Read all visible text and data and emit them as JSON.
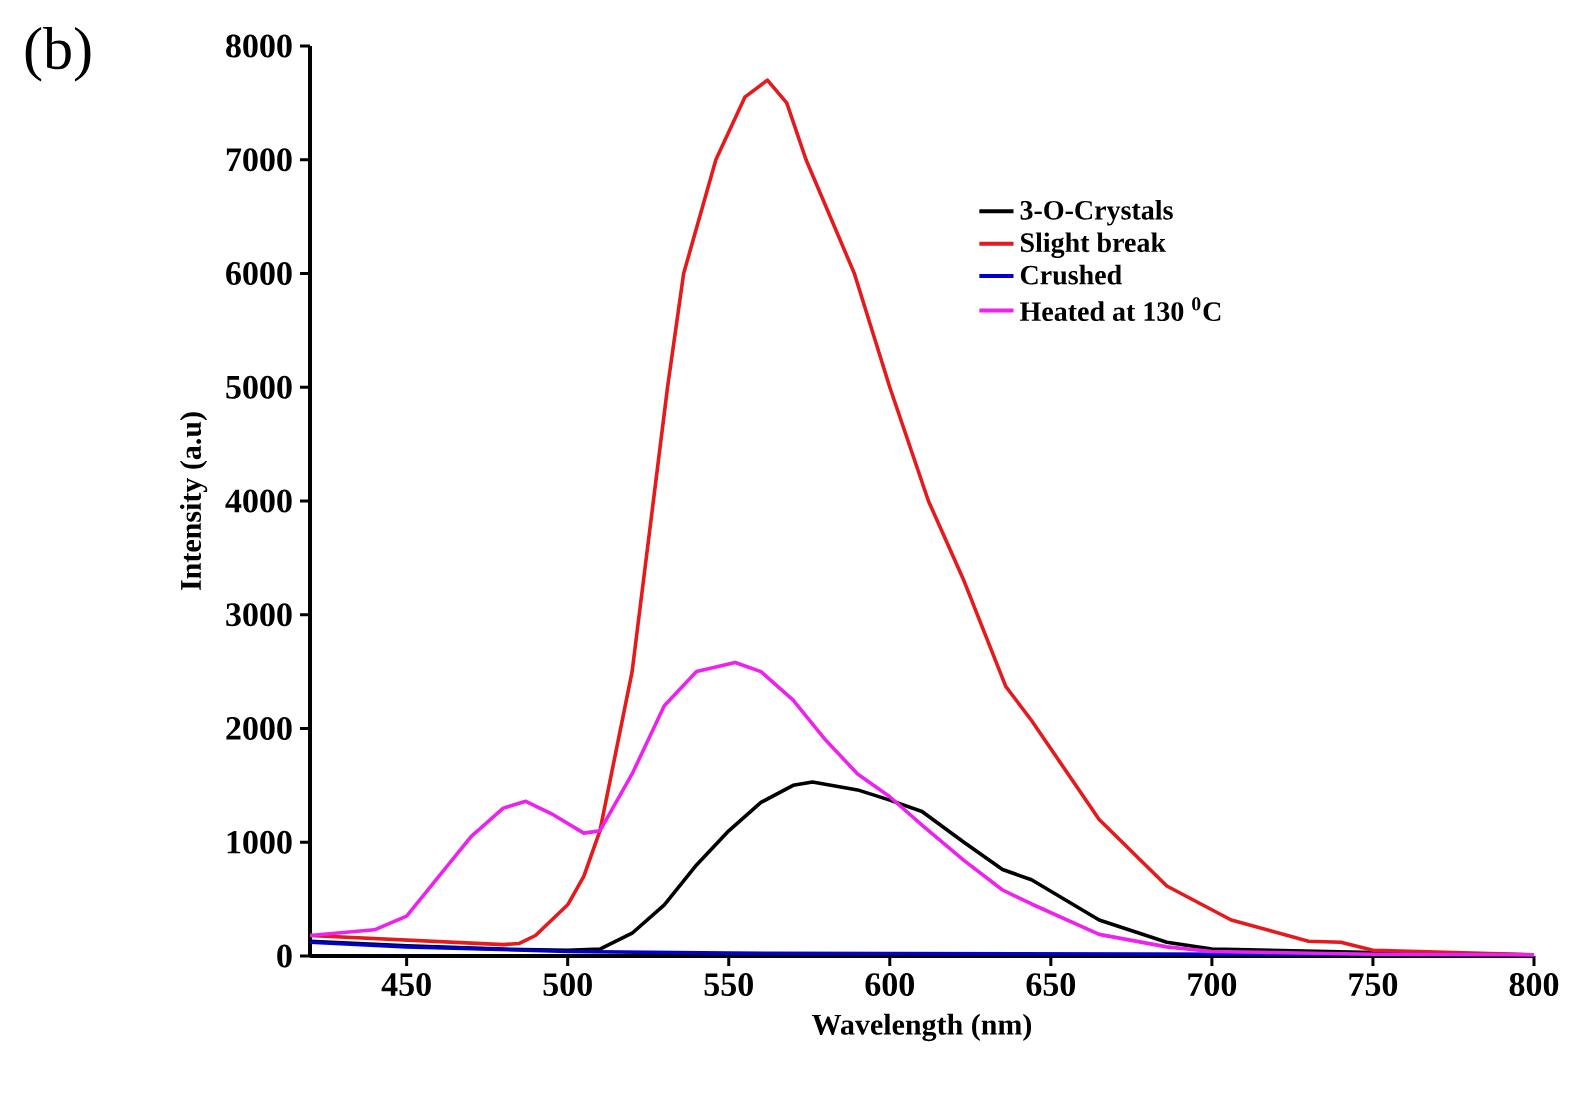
{
  "chart_data": {
    "type": "line",
    "annotations": [
      "(b)"
    ],
    "xlabel": "Wavelength (nm)",
    "ylabel": "Intensity (a.u)",
    "xlim": [
      420,
      800
    ],
    "xticks": [
      450,
      500,
      550,
      600,
      650,
      700,
      750,
      800
    ],
    "ylim": [
      0,
      8000
    ],
    "yticks": [
      0,
      1000,
      2000,
      3000,
      4000,
      5000,
      6000,
      7000,
      8000
    ],
    "grid": false,
    "legend": "top right",
    "marker": "none",
    "line_style": "solid",
    "series": [
      {
        "name": "3-O-Crystals",
        "color": "#000000",
        "x": [
          420,
          450,
          480,
          500,
          510,
          520,
          530,
          540,
          550,
          560,
          570,
          576,
          590,
          600,
          610,
          623,
          635,
          644,
          665,
          686,
          700,
          750,
          800
        ],
        "values": [
          130,
          90,
          60,
          50,
          60,
          200,
          450,
          800,
          1100,
          1350,
          1500,
          1530,
          1460,
          1370,
          1270,
          1000,
          760,
          670,
          316,
          120,
          60,
          30,
          10
        ]
      },
      {
        "name": "Slight break",
        "color": "#e41a1c",
        "x": [
          420,
          450,
          480,
          485,
          490,
          500,
          505,
          510,
          520,
          531,
          536,
          546,
          555,
          562,
          568,
          574,
          589,
          600,
          612,
          623,
          636,
          644,
          665,
          686,
          706,
          730,
          740,
          750,
          800
        ],
        "values": [
          180,
          140,
          100,
          110,
          180,
          450,
          700,
          1100,
          2500,
          5000,
          6000,
          7000,
          7550,
          7700,
          7500,
          7000,
          6000,
          5000,
          4000,
          3300,
          2370,
          2070,
          1200,
          615,
          316,
          130,
          120,
          50,
          10
        ]
      },
      {
        "name": "Crushed",
        "color": "#0000cc",
        "x": [
          420,
          450,
          500,
          550,
          800
        ],
        "values": [
          120,
          80,
          40,
          25,
          10
        ]
      },
      {
        "name": "Heated at 130 $^{0}$C",
        "color": "#ee22ee",
        "x": [
          420,
          440,
          450,
          460,
          470,
          480,
          487,
          495,
          505,
          510,
          520,
          530,
          540,
          552,
          560,
          570,
          580,
          590,
          600,
          610,
          623,
          635,
          644,
          665,
          686,
          700,
          750,
          800
        ],
        "values": [
          180,
          230,
          350,
          700,
          1050,
          1300,
          1360,
          1250,
          1080,
          1100,
          1600,
          2200,
          2500,
          2580,
          2500,
          2250,
          1900,
          1600,
          1400,
          1150,
          840,
          580,
          457,
          190,
          80,
          40,
          15,
          10
        ]
      }
    ]
  }
}
